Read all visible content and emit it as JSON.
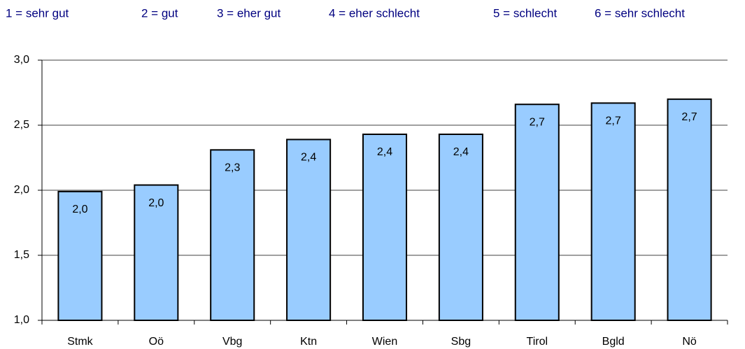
{
  "chart_data": {
    "type": "bar",
    "legend_items": [
      "1 = sehr gut",
      "2 = gut",
      "3 = eher gut",
      "4 = eher schlecht",
      "5 = schlecht",
      "6 = sehr schlecht"
    ],
    "categories": [
      "Stmk",
      "Oö",
      "Vbg",
      "Ktn",
      "Wien",
      "Sbg",
      "Tirol",
      "Bgld",
      "Nö"
    ],
    "values": [
      1.99,
      2.04,
      2.31,
      2.39,
      2.43,
      2.43,
      2.66,
      2.67,
      2.7
    ],
    "value_labels": [
      "2,0",
      "2,0",
      "2,3",
      "2,4",
      "2,4",
      "2,4",
      "2,7",
      "2,7",
      "2,7"
    ],
    "color": "#99ccff",
    "ylim": [
      1.0,
      3.0
    ],
    "yticks": [
      {
        "value": 1.0,
        "label": "1,0"
      },
      {
        "value": 1.5,
        "label": "1,5"
      },
      {
        "value": 2.0,
        "label": "2,0"
      },
      {
        "value": 2.5,
        "label": "2,5"
      },
      {
        "value": 3.0,
        "label": "3,0"
      }
    ],
    "grid": true
  }
}
